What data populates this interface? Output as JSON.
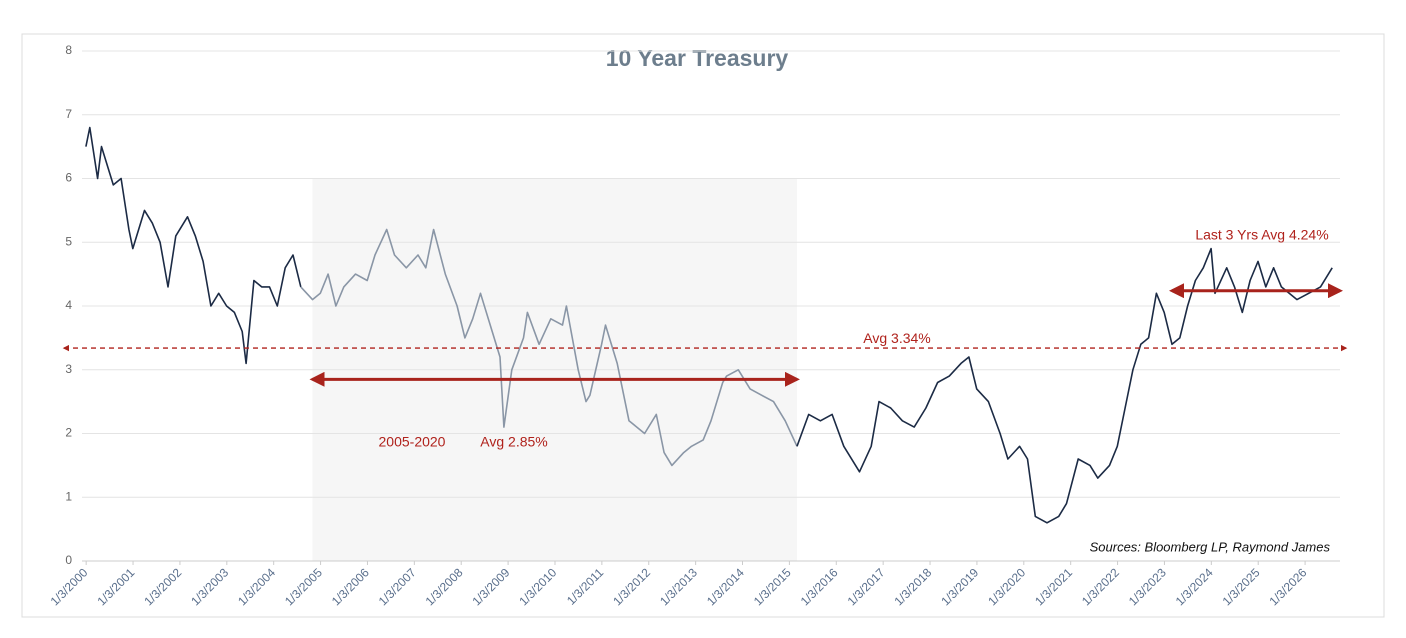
{
  "chart_data": {
    "type": "line",
    "title": "10 Year Treasury",
    "source": "Sources: Bloomberg LP, Raymond James",
    "color": "#1c2b45",
    "grid": true,
    "xlim": [
      "1999-12",
      "2026-10"
    ],
    "ylim": [
      0,
      8
    ],
    "yticks": [
      0,
      1,
      2,
      3,
      4,
      5,
      6,
      7,
      8
    ],
    "xticks": [
      {
        "value": "2000-01-03",
        "label": "1/3/2000"
      },
      {
        "value": "2001-01-03",
        "label": "1/3/2001"
      },
      {
        "value": "2002-01-03",
        "label": "1/3/2002"
      },
      {
        "value": "2003-01-03",
        "label": "1/3/2003"
      },
      {
        "value": "2004-01-03",
        "label": "1/3/2004"
      },
      {
        "value": "2005-01-03",
        "label": "1/3/2005"
      },
      {
        "value": "2006-01-03",
        "label": "1/3/2006"
      },
      {
        "value": "2007-01-03",
        "label": "1/3/2007"
      },
      {
        "value": "2008-01-03",
        "label": "1/3/2008"
      },
      {
        "value": "2009-01-03",
        "label": "1/3/2009"
      },
      {
        "value": "2010-01-03",
        "label": "1/3/2010"
      },
      {
        "value": "2011-01-03",
        "label": "1/3/2011"
      },
      {
        "value": "2012-01-03",
        "label": "1/3/2012"
      },
      {
        "value": "2013-01-03",
        "label": "1/3/2013"
      },
      {
        "value": "2014-01-03",
        "label": "1/3/2014"
      },
      {
        "value": "2015-01-03",
        "label": "1/3/2015"
      },
      {
        "value": "2016-01-03",
        "label": "1/3/2016"
      },
      {
        "value": "2017-01-03",
        "label": "1/3/2017"
      },
      {
        "value": "2018-01-03",
        "label": "1/3/2018"
      },
      {
        "value": "2019-01-03",
        "label": "1/3/2019"
      },
      {
        "value": "2020-01-03",
        "label": "1/3/2020"
      },
      {
        "value": "2021-01-03",
        "label": "1/3/2021"
      },
      {
        "value": "2022-01-03",
        "label": "1/3/2022"
      },
      {
        "value": "2023-01-03",
        "label": "1/3/2023"
      },
      {
        "value": "2024-01-03",
        "label": "1/3/2024"
      },
      {
        "value": "2025-01-03",
        "label": "1/3/2025"
      },
      {
        "value": "2026-01-03",
        "label": "1/3/2026"
      }
    ],
    "highlight": {
      "x_range": [
        "2004-11",
        "2015-03"
      ],
      "color": "#8a96a6",
      "fill": "#f6f6f6"
    },
    "reference_lines": [
      {
        "value": 3.34,
        "label": "Avg  3.34%",
        "x_range": [
          "1999-12",
          "2026-10"
        ],
        "style": "dashed",
        "color": "#b0221c"
      },
      {
        "value": 2.85,
        "label": "Avg  2.85%",
        "period_label": "2005-2020",
        "x_range": [
          "2004-11",
          "2015-03"
        ],
        "style": "solid",
        "color": "#a8231c"
      },
      {
        "value": 4.24,
        "label": "Last 3 Yrs Avg  4.24%",
        "x_range": [
          "2023-03",
          "2026-10"
        ],
        "style": "solid",
        "color": "#a8231c"
      }
    ],
    "x": [
      "2000-01",
      "2000-02",
      "2000-04",
      "2000-05",
      "2000-08",
      "2000-10",
      "2000-12",
      "2001-01",
      "2001-04",
      "2001-06",
      "2001-08",
      "2001-10",
      "2001-12",
      "2002-03",
      "2002-05",
      "2002-07",
      "2002-09",
      "2002-11",
      "2003-01",
      "2003-03",
      "2003-05",
      "2003-06",
      "2003-08",
      "2003-10",
      "2003-12",
      "2004-02",
      "2004-04",
      "2004-06",
      "2004-08",
      "2004-11",
      "2005-01",
      "2005-03",
      "2005-05",
      "2005-07",
      "2005-10",
      "2006-01",
      "2006-03",
      "2006-06",
      "2006-08",
      "2006-11",
      "2007-02",
      "2007-04",
      "2007-06",
      "2007-09",
      "2007-12",
      "2008-02",
      "2008-04",
      "2008-06",
      "2008-09",
      "2008-11",
      "2008-12",
      "2009-02",
      "2009-05",
      "2009-06",
      "2009-09",
      "2009-12",
      "2010-03",
      "2010-04",
      "2010-07",
      "2010-09",
      "2010-10",
      "2011-01",
      "2011-02",
      "2011-05",
      "2011-08",
      "2011-10",
      "2011-12",
      "2012-03",
      "2012-05",
      "2012-07",
      "2012-10",
      "2012-12",
      "2013-03",
      "2013-05",
      "2013-08",
      "2013-09",
      "2013-12",
      "2014-03",
      "2014-06",
      "2014-09",
      "2014-12",
      "2015-03",
      "2015-06",
      "2015-09",
      "2015-12",
      "2016-03",
      "2016-07",
      "2016-10",
      "2016-12",
      "2017-03",
      "2017-06",
      "2017-09",
      "2017-12",
      "2018-03",
      "2018-06",
      "2018-09",
      "2018-11",
      "2019-01",
      "2019-04",
      "2019-07",
      "2019-09",
      "2019-12",
      "2020-02",
      "2020-04",
      "2020-07",
      "2020-10",
      "2020-12",
      "2021-03",
      "2021-06",
      "2021-08",
      "2021-11",
      "2022-01",
      "2022-03",
      "2022-05",
      "2022-07",
      "2022-09",
      "2022-11",
      "2023-01",
      "2023-03",
      "2023-05",
      "2023-07",
      "2023-09",
      "2023-11",
      "2024-01",
      "2024-02",
      "2024-05",
      "2024-07",
      "2024-09",
      "2024-11",
      "2025-01",
      "2025-03",
      "2025-05",
      "2025-07",
      "2025-09",
      "2025-11",
      "2026-02",
      "2026-05",
      "2026-08"
    ],
    "values": [
      6.5,
      6.8,
      6.0,
      6.5,
      5.9,
      6.0,
      5.2,
      4.9,
      5.5,
      5.3,
      5.0,
      4.3,
      5.1,
      5.4,
      5.1,
      4.7,
      4.0,
      4.2,
      4.0,
      3.9,
      3.6,
      3.1,
      4.4,
      4.3,
      4.3,
      4.0,
      4.6,
      4.8,
      4.3,
      4.1,
      4.2,
      4.5,
      4.0,
      4.3,
      4.5,
      4.4,
      4.8,
      5.2,
      4.8,
      4.6,
      4.8,
      4.6,
      5.2,
      4.5,
      4.0,
      3.5,
      3.8,
      4.2,
      3.6,
      3.2,
      2.1,
      3.0,
      3.5,
      3.9,
      3.4,
      3.8,
      3.7,
      4.0,
      3.0,
      2.5,
      2.6,
      3.4,
      3.7,
      3.1,
      2.2,
      2.1,
      2.0,
      2.3,
      1.7,
      1.5,
      1.7,
      1.8,
      1.9,
      2.2,
      2.8,
      2.9,
      3.0,
      2.7,
      2.6,
      2.5,
      2.2,
      1.8,
      2.3,
      2.2,
      2.3,
      1.8,
      1.4,
      1.8,
      2.5,
      2.4,
      2.2,
      2.1,
      2.4,
      2.8,
      2.9,
      3.1,
      3.2,
      2.7,
      2.5,
      2.0,
      1.6,
      1.8,
      1.6,
      0.7,
      0.6,
      0.7,
      0.9,
      1.6,
      1.5,
      1.3,
      1.5,
      1.8,
      2.4,
      3.0,
      3.4,
      3.5,
      4.2,
      3.9,
      3.4,
      3.5,
      4.0,
      4.4,
      4.6,
      4.9,
      4.2,
      4.6,
      4.3,
      3.9,
      4.4,
      4.7,
      4.3,
      4.6,
      4.3,
      4.2,
      4.1,
      4.2,
      4.3,
      4.6
    ]
  }
}
